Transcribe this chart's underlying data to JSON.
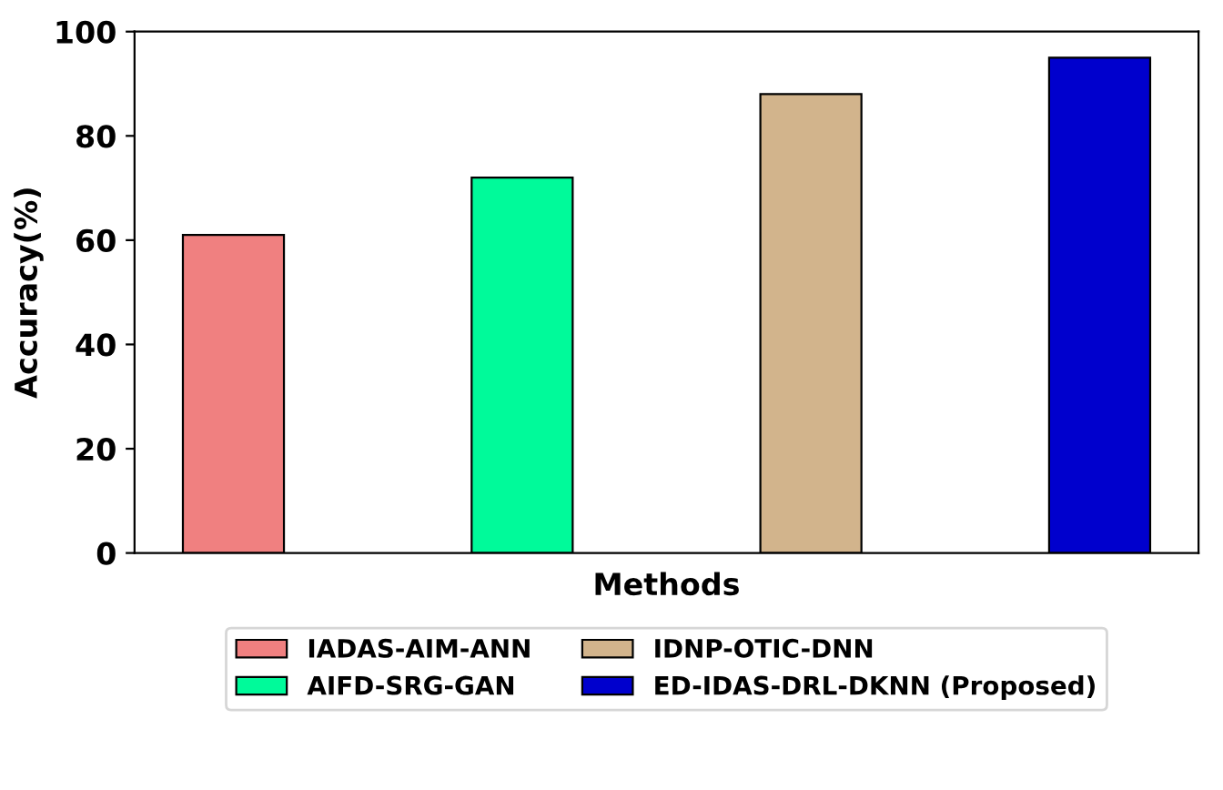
{
  "chart_data": {
    "type": "bar",
    "xlabel": "Methods",
    "ylabel": "Accuracy(%)",
    "categories": [
      null,
      null,
      null,
      null
    ],
    "series": [
      {
        "name": "IADAS-AIM-ANN",
        "color": "#f08080",
        "values": [
          61,
          null,
          null,
          null
        ]
      },
      {
        "name": "AIFD-SRG-GAN",
        "color": "#00fa9a",
        "values": [
          null,
          72,
          null,
          null
        ]
      },
      {
        "name": "IDNP-OTIC-DNN",
        "color": "#d2b48c",
        "values": [
          null,
          null,
          88,
          null
        ]
      },
      {
        "name": "ED-IDAS-DRL-DKNN (Proposed)",
        "color": "#0000cd",
        "values": [
          null,
          null,
          null,
          95
        ]
      }
    ],
    "ylim": [
      0,
      100
    ],
    "yticks": [
      0,
      20,
      40,
      60,
      80,
      100
    ],
    "grid": false,
    "legend": "bottom"
  }
}
